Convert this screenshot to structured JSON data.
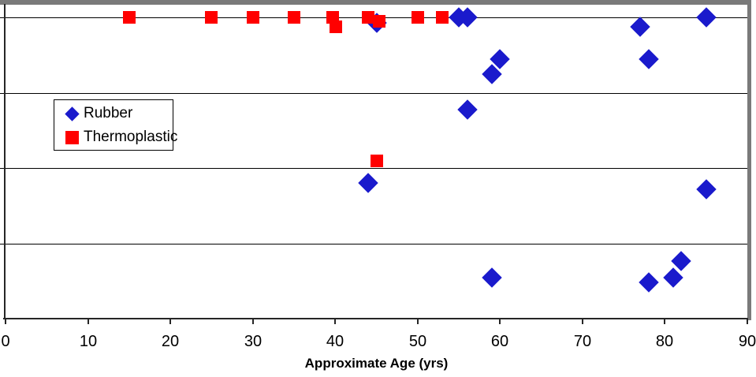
{
  "chart_data": {
    "type": "scatter",
    "title": "",
    "xlabel": "Approximate Age (yrs)",
    "ylabel": "",
    "xlim": [
      0,
      90
    ],
    "ylim": [
      0,
      4.17
    ],
    "x_ticks": [
      0,
      10,
      20,
      30,
      40,
      50,
      60,
      70,
      80,
      90
    ],
    "x_tick_labels": [
      "0",
      "10",
      "20",
      "30",
      "40",
      "50",
      "60",
      "70",
      "80",
      "90"
    ],
    "y_gridline_values": [
      1,
      2,
      3,
      4
    ],
    "grid": "horizontal-only",
    "legend_position": "inside-upper-left",
    "series": [
      {
        "name": "Rubber",
        "marker": "diamond",
        "color": "#1a1acc",
        "points": [
          [
            45,
            3.93
          ],
          [
            55,
            4.0
          ],
          [
            56,
            4.0
          ],
          [
            85,
            4.0
          ],
          [
            77,
            3.88
          ],
          [
            78,
            3.45
          ],
          [
            60,
            3.45
          ],
          [
            59,
            3.25
          ],
          [
            56,
            2.78
          ],
          [
            44,
            1.8
          ],
          [
            85,
            1.72
          ],
          [
            59,
            0.55
          ],
          [
            78,
            0.48
          ],
          [
            81,
            0.54
          ],
          [
            82,
            0.77
          ]
        ]
      },
      {
        "name": "Thermoplastic",
        "marker": "square",
        "color": "#ff0000",
        "points": [
          [
            15,
            4.0
          ],
          [
            25,
            4.0
          ],
          [
            30,
            4.0
          ],
          [
            35,
            4.0
          ],
          [
            39.7,
            4.0
          ],
          [
            40.1,
            3.88
          ],
          [
            44,
            4.0
          ],
          [
            45.3,
            3.95
          ],
          [
            50,
            4.0
          ],
          [
            53,
            4.0
          ],
          [
            45,
            2.1
          ]
        ]
      }
    ]
  },
  "colors": {
    "rubber": "#1a1acc",
    "thermoplastic": "#ff0000",
    "gridline": "#000000",
    "frame_gray": "#7a7a7a",
    "axis": "#262626",
    "background": "#ffffff"
  }
}
